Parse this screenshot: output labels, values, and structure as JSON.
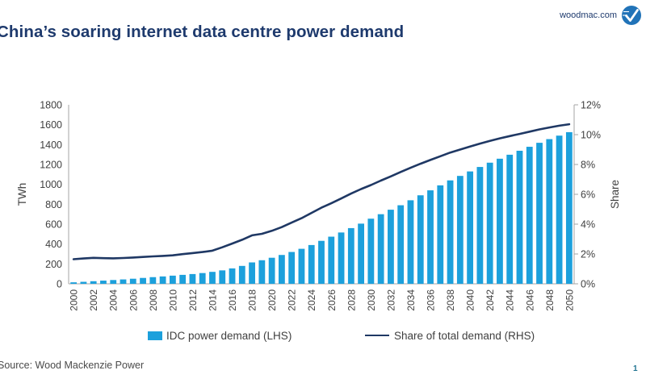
{
  "header": {
    "title": "China’s soaring internet data centre power demand",
    "site": "woodmac.com"
  },
  "colors": {
    "bar": "#1CA0DC",
    "line": "#1F3864",
    "title_text": "#1E3A6D",
    "axis_line": "#A6A6A6",
    "tick_text": "#404040",
    "logo_blue": "#2173B8",
    "page_number": "#1F7391"
  },
  "chart_data": {
    "type": "bar",
    "subtype": "bar+line combo",
    "x": [
      2000,
      2001,
      2002,
      2003,
      2004,
      2005,
      2006,
      2007,
      2008,
      2009,
      2010,
      2011,
      2012,
      2013,
      2014,
      2015,
      2016,
      2017,
      2018,
      2019,
      2020,
      2021,
      2022,
      2023,
      2024,
      2025,
      2026,
      2027,
      2028,
      2029,
      2030,
      2031,
      2032,
      2033,
      2034,
      2035,
      2036,
      2037,
      2038,
      2039,
      2040,
      2041,
      2042,
      2043,
      2044,
      2045,
      2046,
      2047,
      2048,
      2049,
      2050
    ],
    "x_tick_labels": [
      "2000",
      "2002",
      "2004",
      "2006",
      "2008",
      "2010",
      "2012",
      "2014",
      "2016",
      "2018",
      "2020",
      "2022",
      "2024",
      "2026",
      "2028",
      "2030",
      "2032",
      "2034",
      "2036",
      "2038",
      "2040",
      "2042",
      "2044",
      "2046",
      "2048",
      "2050"
    ],
    "series": [
      {
        "name": "IDC power demand (LHS)",
        "type": "bar",
        "axis": "left",
        "values": [
          15,
          20,
          26,
          32,
          38,
          44,
          51,
          59,
          67,
          74,
          82,
          90,
          98,
          108,
          120,
          135,
          155,
          180,
          215,
          237,
          262,
          290,
          320,
          352,
          390,
          432,
          474,
          516,
          560,
          605,
          655,
          700,
          745,
          790,
          840,
          890,
          940,
          990,
          1040,
          1085,
          1130,
          1175,
          1218,
          1258,
          1298,
          1338,
          1378,
          1418,
          1455,
          1490,
          1525
        ]
      },
      {
        "name": "Share of total demand (RHS)",
        "type": "line",
        "axis": "right",
        "values": [
          1.65,
          1.7,
          1.74,
          1.72,
          1.71,
          1.73,
          1.76,
          1.8,
          1.84,
          1.87,
          1.91,
          1.99,
          2.06,
          2.13,
          2.22,
          2.45,
          2.7,
          2.95,
          3.25,
          3.35,
          3.55,
          3.8,
          4.1,
          4.4,
          4.75,
          5.1,
          5.4,
          5.72,
          6.05,
          6.35,
          6.62,
          6.92,
          7.2,
          7.5,
          7.78,
          8.05,
          8.3,
          8.55,
          8.8,
          9.0,
          9.2,
          9.4,
          9.58,
          9.75,
          9.9,
          10.05,
          10.2,
          10.35,
          10.48,
          10.6,
          10.7
        ]
      }
    ],
    "y_left": {
      "label": "TWh",
      "min": 0,
      "max": 1800,
      "step": 200,
      "ticks": [
        0,
        200,
        400,
        600,
        800,
        1000,
        1200,
        1400,
        1600,
        1800
      ]
    },
    "y_right": {
      "label": "Share",
      "min": 0,
      "max": 12,
      "step": 2,
      "ticks": [
        0,
        2,
        4,
        6,
        8,
        10,
        12
      ],
      "suffix": "%"
    },
    "grid": false,
    "legend_position": "bottom"
  },
  "legend": {
    "items": [
      {
        "label": "IDC power demand (LHS)",
        "marker": "bar"
      },
      {
        "label": "Share of total demand (RHS)",
        "marker": "line"
      }
    ]
  },
  "footer": {
    "source": "Source: Wood Mackenzie Power",
    "page_number": "1"
  }
}
